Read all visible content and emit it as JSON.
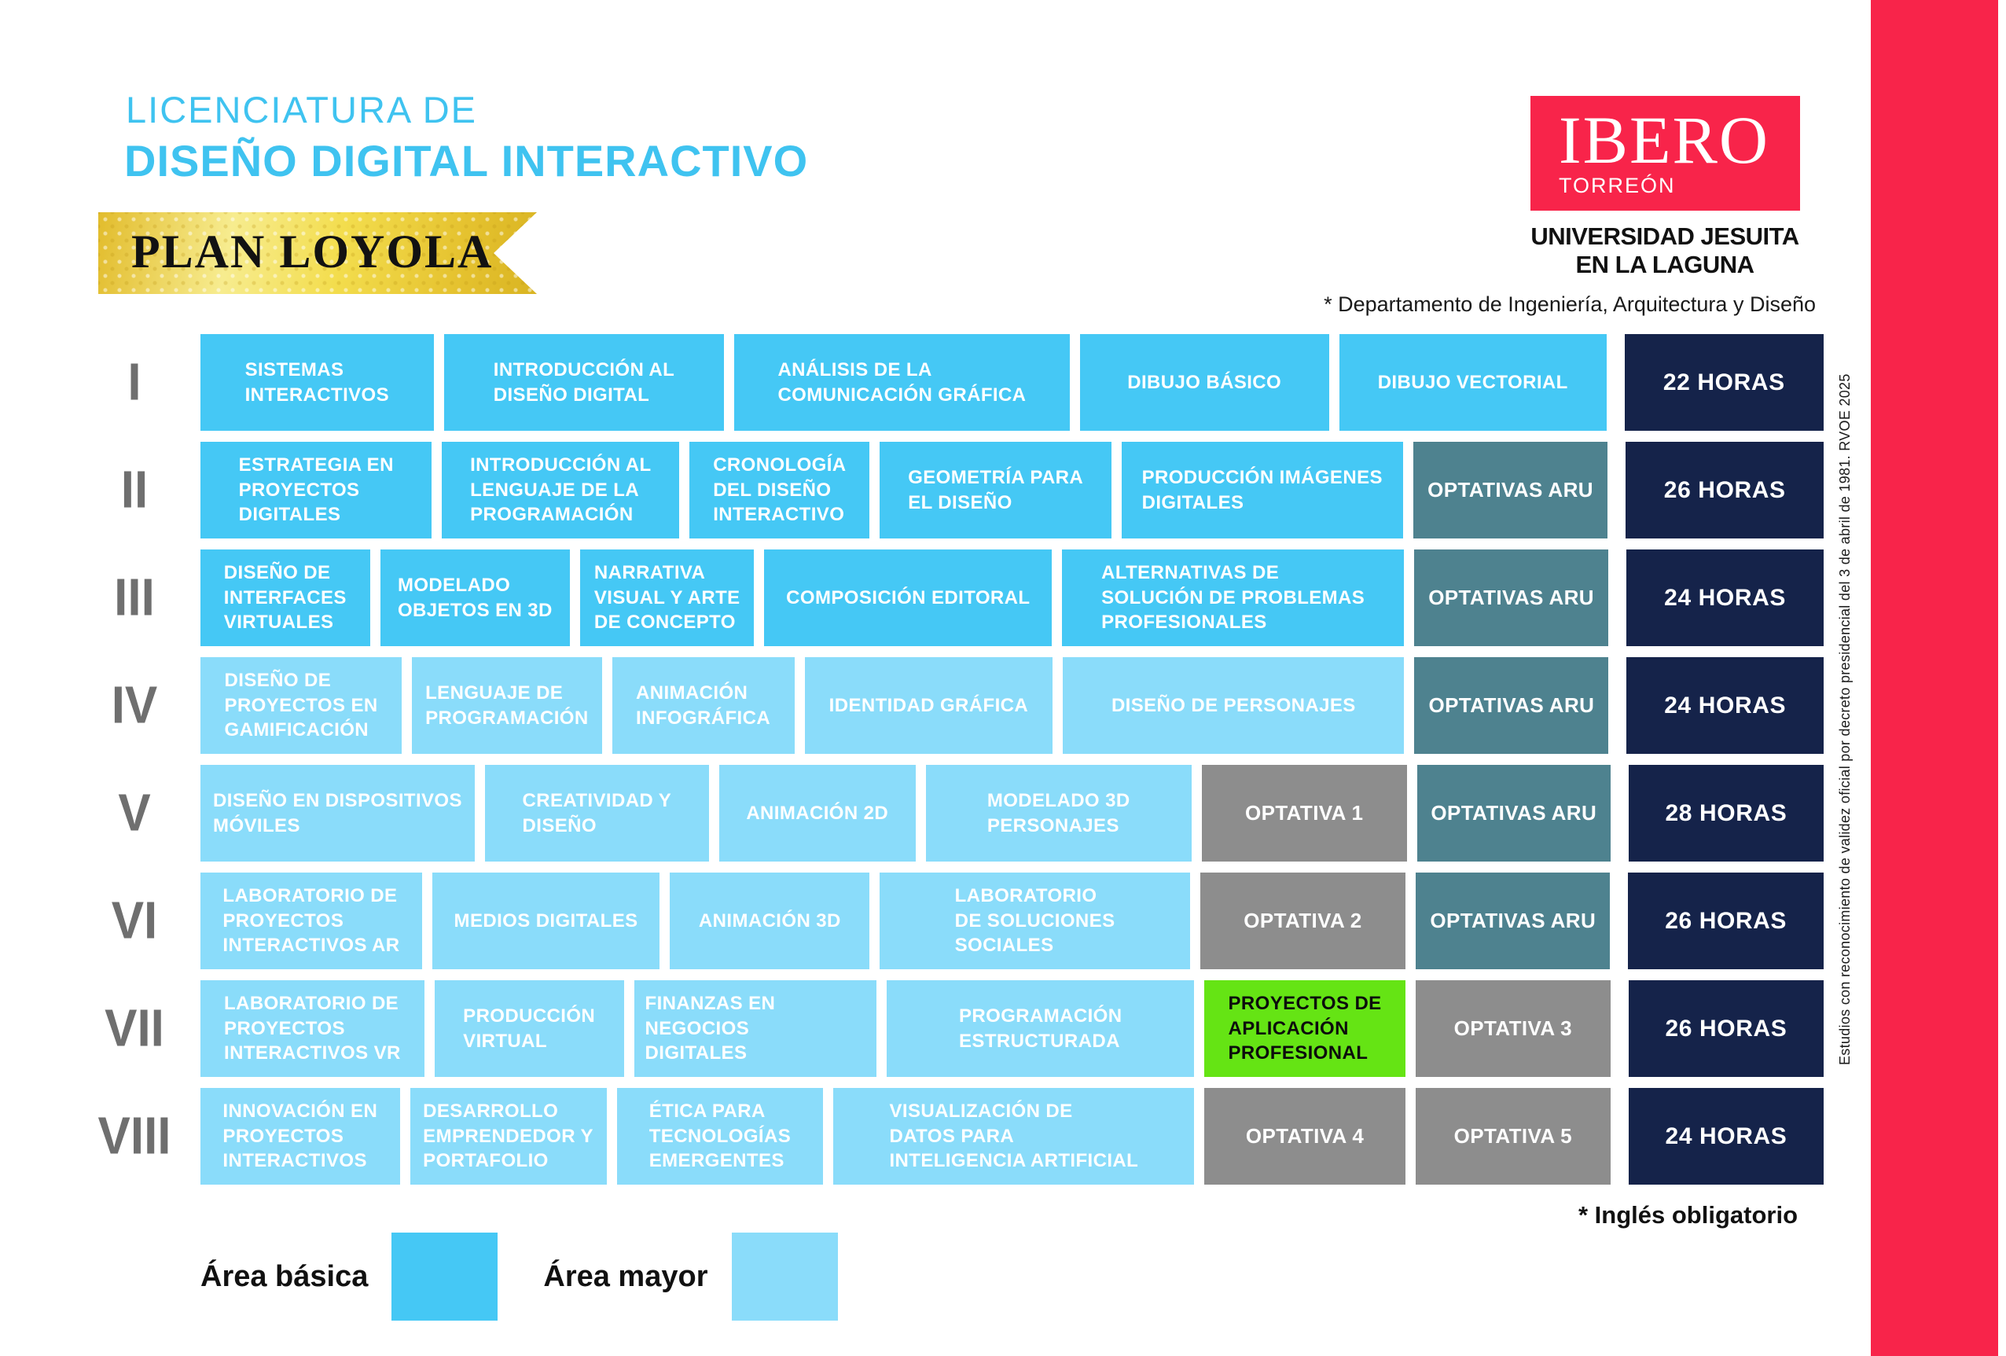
{
  "header": {
    "degree_line1": "LICENCIATURA DE",
    "degree_line2": "DISEÑO DIGITAL INTERACTIVO",
    "plan_banner": "PLAN LOYOLA",
    "logo": {
      "brand": "IBERO",
      "campus": "TORREÓN",
      "subtitle": "UNIVERSIDAD JESUITA\nEN LA LAGUNA"
    },
    "department_note": "* Departamento de Ingeniería, Arquitectura y Diseño"
  },
  "grid": {
    "hours_col_w": 12,
    "rows": [
      {
        "numeral": "I",
        "hours": "22 HORAS",
        "cells": [
          {
            "label": "SISTEMAS\nINTERACTIVOS",
            "type": "basic",
            "w": 14.3
          },
          {
            "label": "INTRODUCCIÓN AL\nDISEÑO DIGITAL",
            "type": "basic",
            "w": 17.5
          },
          {
            "label": "ANÁLISIS DE LA\nCOMUNICACIÓN GRÁFICA",
            "type": "basic",
            "w": 21.2
          },
          {
            "label": "DIBUJO BÁSICO",
            "type": "basic",
            "w": 15.4
          },
          {
            "label": "DIBUJO VECTORIAL",
            "type": "basic",
            "w": 16.6
          }
        ]
      },
      {
        "numeral": "II",
        "hours": "26 HORAS",
        "cells": [
          {
            "label": "ESTRATEGIA EN\nPROYECTOS\nDIGITALES",
            "type": "basic",
            "w": 14.3
          },
          {
            "label": "INTRODUCCIÓN AL\nLENGUAJE DE LA\nPROGRAMACIÓN",
            "type": "basic",
            "w": 14.7
          },
          {
            "label": "CRONOLOGÍA\nDEL DISEÑO\nINTERACTIVO",
            "type": "basic",
            "w": 10.8
          },
          {
            "label": "GEOMETRÍA PARA\nEL DISEÑO",
            "type": "basic",
            "w": 14.3
          },
          {
            "label": "PRODUCCIÓN IMÁGENES\nDIGITALES",
            "type": "basic",
            "w": 17.7
          },
          {
            "label": "OPTATIVAS ARU",
            "type": "aru",
            "w": 11.8
          }
        ]
      },
      {
        "numeral": "III",
        "hours": "24 HORAS",
        "cells": [
          {
            "label": "DISEÑO DE\nINTERFACES\nVIRTUALES",
            "type": "basic",
            "w": 10.1
          },
          {
            "label": "MODELADO\nOBJETOS EN 3D",
            "type": "basic",
            "w": 11.5
          },
          {
            "label": "NARRATIVA\nVISUAL Y ARTE\nDE CONCEPTO",
            "type": "basic",
            "w": 10.4
          },
          {
            "label": "COMPOSICIÓN EDITORAL",
            "type": "basic",
            "w": 18.2
          },
          {
            "label": "ALTERNATIVAS DE\nSOLUCIÓN DE PROBLEMAS\nPROFESIONALES",
            "type": "basic",
            "w": 21.9
          },
          {
            "label": "OPTATIVAS ARU",
            "type": "aru",
            "w": 11.8
          }
        ]
      },
      {
        "numeral": "IV",
        "hours": "24 HORAS",
        "cells": [
          {
            "label": "DISEÑO DE\nPROYECTOS EN\nGAMIFICACIÓN",
            "type": "major",
            "w": 12.3
          },
          {
            "label": "LENGUAJE DE\nPROGRAMACIÓN",
            "type": "major",
            "w": 11.5
          },
          {
            "label": "ANIMACIÓN\nINFOGRÁFICA",
            "type": "major",
            "w": 11.0
          },
          {
            "label": "IDENTIDAD GRÁFICA",
            "type": "major",
            "w": 15.5
          },
          {
            "label": "DISEÑO DE PERSONAJES",
            "type": "major",
            "w": 21.9
          },
          {
            "label": "OPTATIVAS ARU",
            "type": "aru",
            "w": 11.8
          }
        ]
      },
      {
        "numeral": "V",
        "hours": "28 HORAS",
        "cells": [
          {
            "label": "DISEÑO EN DISPOSITIVOS\nMÓVILES",
            "type": "major",
            "w": 17.5
          },
          {
            "label": "CREATIVIDAD Y\nDISEÑO",
            "type": "major",
            "w": 14.0
          },
          {
            "label": "ANIMACIÓN 2D",
            "type": "major",
            "w": 12.1
          },
          {
            "label": "MODELADO 3D\nPERSONAJES",
            "type": "major",
            "w": 16.9
          },
          {
            "label": "OPTATIVA 1",
            "type": "opt",
            "w": 12.7
          },
          {
            "label": "OPTATIVAS ARU",
            "type": "aru",
            "w": 11.9
          }
        ]
      },
      {
        "numeral": "VI",
        "hours": "26 HORAS",
        "cells": [
          {
            "label": "LABORATORIO DE\nPROYECTOS\nINTERACTIVOS AR",
            "type": "major",
            "w": 13.8
          },
          {
            "label": "MEDIOS DIGITALES",
            "type": "major",
            "w": 14.2
          },
          {
            "label": "ANIMACIÓN 3D",
            "type": "major",
            "w": 12.3
          },
          {
            "label": "LABORATORIO\nDE SOLUCIONES\nSOCIALES",
            "type": "major",
            "w": 19.9
          },
          {
            "label": "OPTATIVA 2",
            "type": "opt",
            "w": 12.7
          },
          {
            "label": "OPTATIVAS ARU",
            "type": "aru",
            "w": 11.9
          }
        ]
      },
      {
        "numeral": "VII",
        "hours": "26 HORAS",
        "cells": [
          {
            "label": "LABORATORIO DE\nPROYECTOS\nINTERACTIVOS VR",
            "type": "major",
            "w": 14.0
          },
          {
            "label": "PRODUCCIÓN\nVIRTUAL",
            "type": "major",
            "w": 11.6
          },
          {
            "label": "FINANZAS EN NEGOCIOS\nDIGITALES",
            "type": "major",
            "w": 15.3
          },
          {
            "label": "PROGRAMACIÓN\nESTRUCTURADA",
            "type": "major",
            "w": 19.8
          },
          {
            "label": "PROYECTOS DE\nAPLICACIÓN\nPROFESIONAL",
            "type": "green",
            "w": 12.4
          },
          {
            "label": "OPTATIVA 3",
            "type": "opt",
            "w": 12.0
          }
        ]
      },
      {
        "numeral": "VIII",
        "hours": "24 HORAS",
        "cells": [
          {
            "label": "INNOVACIÓN EN\nPROYECTOS\nINTERACTIVOS",
            "type": "major",
            "w": 12.3
          },
          {
            "label": "DESARROLLO\nEMPRENDEDOR Y\nPORTAFOLIO",
            "type": "major",
            "w": 12.1
          },
          {
            "label": "ÉTICA PARA\nTECNOLOGÍAS\nEMERGENTES",
            "type": "major",
            "w": 12.8
          },
          {
            "label": "VISUALIZACIÓN DE\nDATOS PARA\nINTELIGENCIA ARTIFICIAL",
            "type": "major",
            "w": 23.5
          },
          {
            "label": "OPTATIVA 4",
            "type": "opt",
            "w": 12.4
          },
          {
            "label": "OPTATIVA 5",
            "type": "opt",
            "w": 12.0
          }
        ]
      }
    ]
  },
  "legend": {
    "basic_label": "Área básica",
    "major_label": "Área mayor"
  },
  "footnotes": {
    "english_note": "* Inglés obligatorio",
    "rvoe_note": "Estudios con reconocimiento de validez oficial por decreto presidencial del 3 de abril de 1981. RVOE 2025"
  },
  "colors": {
    "cyan_title": "#3fc3f0",
    "basic": "#45c8f5",
    "major": "#8adcfa",
    "aru": "#4e828f",
    "optativa": "#8d8d8d",
    "green": "#65e414",
    "hours_navy": "#15234a",
    "brand_red": "#f8244a",
    "numeral_gray": "#6f6f6f"
  }
}
